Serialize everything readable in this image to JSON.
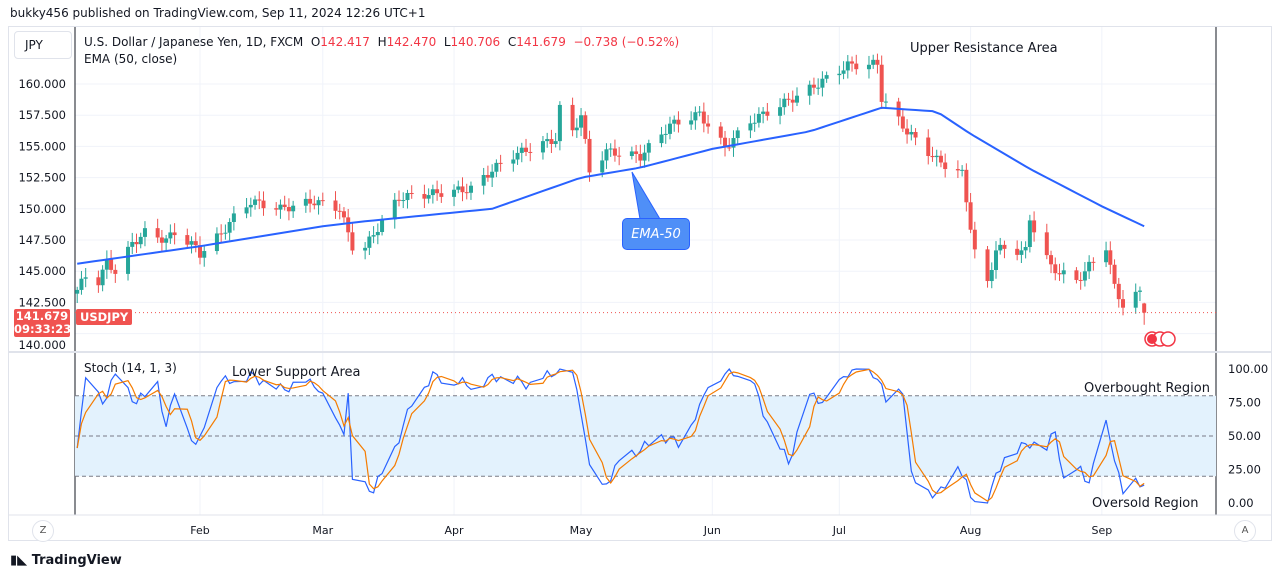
{
  "header": {
    "published": "bukky456 published on TradingView.com, Sep 11, 2024 12:26 UTC+1",
    "currency": "JPY"
  },
  "legend": {
    "title": "U.S. Dollar / Japanese Yen, 1D, FXCM",
    "o_label": "O",
    "o": "142.417",
    "h_label": "H",
    "h": "142.470",
    "l_label": "L",
    "l": "140.706",
    "c_label": "C",
    "c": "141.679",
    "change": "−0.738 (−0.52%)",
    "ema": "EMA (50, close)",
    "stoch": "Stoch (14, 1, 3)"
  },
  "price_tag": {
    "price": "141.679",
    "countdown": "09:33:23",
    "symbol": "USDJPY"
  },
  "annotations": {
    "upper": "Upper Resistance Area",
    "lower": "Lower Support Area",
    "overbought": "Overbought Region",
    "oversold": "Oversold Region",
    "ema_callout": "EMA-50"
  },
  "footer": {
    "logo": "TradingView",
    "left_button": "Z",
    "right_button": "A"
  },
  "colors": {
    "up": "#26a69a",
    "down": "#ef5350",
    "ema": "#2962ff",
    "stoch_k": "#2962ff",
    "stoch_d": "#f57c00",
    "band": "#e3f2fd"
  },
  "chart_data": [
    {
      "type": "candlestick",
      "symbol": "USDJPY",
      "interval": "1D",
      "y_ticks": [
        "160.000",
        "157.500",
        "155.000",
        "152.500",
        "150.000",
        "147.500",
        "145.000",
        "142.500",
        "140.000"
      ],
      "x_ticks": [
        "Feb",
        "Mar",
        "Apr",
        "May",
        "Jun",
        "Jul",
        "Aug",
        "Sep"
      ],
      "ylim": [
        139,
        163
      ],
      "close_path": [
        [
          "2024-01-03",
          143.5
        ],
        [
          "2024-01-05",
          144.6
        ],
        [
          "2024-01-08",
          144.2
        ],
        [
          "2024-01-10",
          145.7
        ],
        [
          "2024-01-12",
          145.0
        ],
        [
          "2024-01-16",
          147.2
        ],
        [
          "2024-01-19",
          148.1
        ],
        [
          "2024-01-24",
          147.5
        ],
        [
          "2024-01-26",
          148.1
        ],
        [
          "2024-01-31",
          146.9
        ],
        [
          "2024-02-01",
          146.4
        ],
        [
          "2024-02-06",
          148.0
        ],
        [
          "2024-02-09",
          149.3
        ],
        [
          "2024-02-13",
          150.6
        ],
        [
          "2024-02-20",
          150.0
        ],
        [
          "2024-02-28",
          150.6
        ],
        [
          "2024-03-05",
          150.0
        ],
        [
          "2024-03-08",
          147.0
        ],
        [
          "2024-03-11",
          146.9
        ],
        [
          "2024-03-15",
          149.0
        ],
        [
          "2024-03-19",
          150.9
        ],
        [
          "2024-03-29",
          151.3
        ],
        [
          "2024-04-05",
          151.6
        ],
        [
          "2024-04-10",
          153.1
        ],
        [
          "2024-04-15",
          154.3
        ],
        [
          "2024-04-25",
          155.6
        ],
        [
          "2024-04-26",
          158.0
        ],
        [
          "2024-04-29",
          156.2
        ],
        [
          "2024-05-01",
          157.5
        ],
        [
          "2024-05-03",
          153.0
        ],
        [
          "2024-05-07",
          154.6
        ],
        [
          "2024-05-15",
          154.2
        ],
        [
          "2024-05-22",
          156.7
        ],
        [
          "2024-05-29",
          157.6
        ],
        [
          "2024-06-04",
          154.9
        ],
        [
          "2024-06-10",
          157.0
        ],
        [
          "2024-06-24",
          159.6
        ],
        [
          "2024-07-03",
          161.5
        ],
        [
          "2024-07-10",
          161.6
        ],
        [
          "2024-07-11",
          158.9
        ],
        [
          "2024-07-17",
          156.2
        ],
        [
          "2024-07-24",
          153.9
        ],
        [
          "2024-07-30",
          152.8
        ],
        [
          "2024-08-02",
          146.5
        ],
        [
          "2024-08-05",
          144.0
        ],
        [
          "2024-08-07",
          146.8
        ],
        [
          "2024-08-14",
          146.6
        ],
        [
          "2024-08-15",
          149.2
        ],
        [
          "2024-08-20",
          145.3
        ],
        [
          "2024-08-26",
          144.2
        ],
        [
          "2024-09-02",
          147.0
        ],
        [
          "2024-09-04",
          143.7
        ],
        [
          "2024-09-06",
          142.3
        ],
        [
          "2024-09-10",
          143.3
        ],
        [
          "2024-09-11",
          141.679
        ]
      ],
      "ema50": [
        [
          "2024-01-03",
          145.6
        ],
        [
          "2024-02-01",
          147.0
        ],
        [
          "2024-03-01",
          148.6
        ],
        [
          "2024-03-11",
          149.0
        ],
        [
          "2024-04-10",
          150.0
        ],
        [
          "2024-05-01",
          152.5
        ],
        [
          "2024-05-15",
          153.3
        ],
        [
          "2024-06-01",
          154.8
        ],
        [
          "2024-06-24",
          156.2
        ],
        [
          "2024-07-11",
          158.1
        ],
        [
          "2024-07-24",
          157.8
        ],
        [
          "2024-08-01",
          156.0
        ],
        [
          "2024-08-15",
          153.2
        ],
        [
          "2024-09-01",
          150.2
        ],
        [
          "2024-09-11",
          148.6
        ]
      ]
    },
    {
      "type": "line",
      "name": "Stoch (14, 1, 3)",
      "ylim": [
        0,
        100
      ],
      "y_ticks": [
        "100.00",
        "75.00",
        "50.00",
        "25.00",
        "0.00"
      ],
      "bands": [
        80,
        50,
        20
      ],
      "k": [
        [
          "2024-01-03",
          45
        ],
        [
          "2024-01-05",
          90
        ],
        [
          "2024-01-09",
          75
        ],
        [
          "2024-01-12",
          95
        ],
        [
          "2024-01-17",
          75
        ],
        [
          "2024-01-22",
          90
        ],
        [
          "2024-01-24",
          55
        ],
        [
          "2024-01-26",
          85
        ],
        [
          "2024-01-31",
          40
        ],
        [
          "2024-02-05",
          90
        ],
        [
          "2024-02-13",
          95
        ],
        [
          "2024-02-20",
          85
        ],
        [
          "2024-02-28",
          90
        ],
        [
          "2024-03-04",
          60
        ],
        [
          "2024-03-06",
          55
        ],
        [
          "2024-03-07",
          80
        ],
        [
          "2024-03-08",
          15
        ],
        [
          "2024-03-13",
          10
        ],
        [
          "2024-03-18",
          40
        ],
        [
          "2024-03-22",
          75
        ],
        [
          "2024-03-27",
          95
        ],
        [
          "2024-04-05",
          88
        ],
        [
          "2024-04-12",
          95
        ],
        [
          "2024-04-19",
          88
        ],
        [
          "2024-04-26",
          100
        ],
        [
          "2024-04-29",
          95
        ],
        [
          "2024-05-01",
          70
        ],
        [
          "2024-05-03",
          25
        ],
        [
          "2024-05-06",
          10
        ],
        [
          "2024-05-10",
          30
        ],
        [
          "2024-05-20",
          50
        ],
        [
          "2024-05-24",
          45
        ],
        [
          "2024-05-29",
          70
        ],
        [
          "2024-05-31",
          90
        ],
        [
          "2024-06-05",
          98
        ],
        [
          "2024-06-10",
          95
        ],
        [
          "2024-06-14",
          60
        ],
        [
          "2024-06-19",
          30
        ],
        [
          "2024-06-24",
          80
        ],
        [
          "2024-06-28",
          75
        ],
        [
          "2024-07-03",
          98
        ],
        [
          "2024-07-10",
          95
        ],
        [
          "2024-07-12",
          75
        ],
        [
          "2024-07-16",
          85
        ],
        [
          "2024-07-18",
          20
        ],
        [
          "2024-07-24",
          5
        ],
        [
          "2024-07-29",
          30
        ],
        [
          "2024-08-01",
          5
        ],
        [
          "2024-08-05",
          3
        ],
        [
          "2024-08-09",
          35
        ],
        [
          "2024-08-15",
          45
        ],
        [
          "2024-08-19",
          40
        ],
        [
          "2024-08-21",
          55
        ],
        [
          "2024-08-23",
          15
        ],
        [
          "2024-08-27",
          25
        ],
        [
          "2024-08-29",
          15
        ],
        [
          "2024-09-02",
          58
        ],
        [
          "2024-09-04",
          35
        ],
        [
          "2024-09-06",
          5
        ],
        [
          "2024-09-09",
          15
        ],
        [
          "2024-09-11",
          15
        ]
      ]
    }
  ]
}
